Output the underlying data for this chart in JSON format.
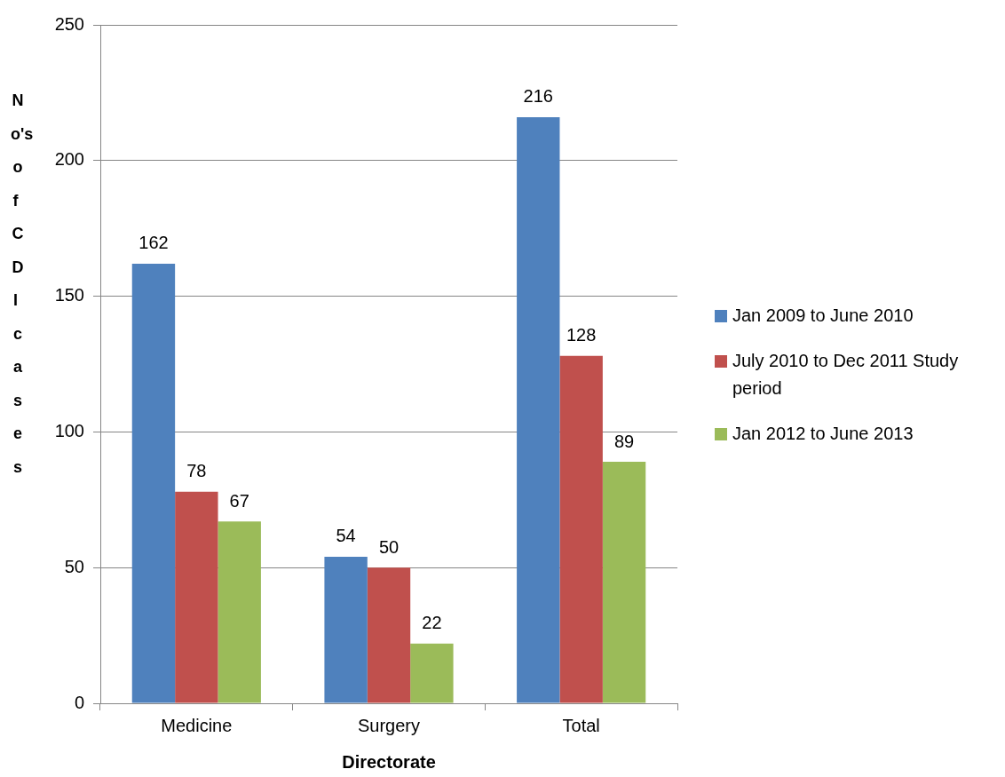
{
  "chart_data": {
    "type": "bar",
    "xlabel": "Directorate",
    "ylabel": "No's of CDI cases",
    "categories": [
      "Medicine",
      "Surgery",
      "Total"
    ],
    "series": [
      {
        "name": "Jan 2009 to June 2010",
        "color": "#4f81bd",
        "values": [
          162,
          54,
          216
        ]
      },
      {
        "name": "July 2010 to Dec 2011 Study period",
        "color": "#c0504d",
        "values": [
          78,
          50,
          128
        ]
      },
      {
        "name": "Jan 2012 to June 2013",
        "color": "#9bbb59",
        "values": [
          67,
          22,
          89
        ]
      }
    ],
    "ylim": [
      0,
      250
    ],
    "yticks": [
      0,
      50,
      100,
      150,
      200,
      250
    ],
    "grid": "y",
    "legend": "right",
    "data_labels": true
  }
}
